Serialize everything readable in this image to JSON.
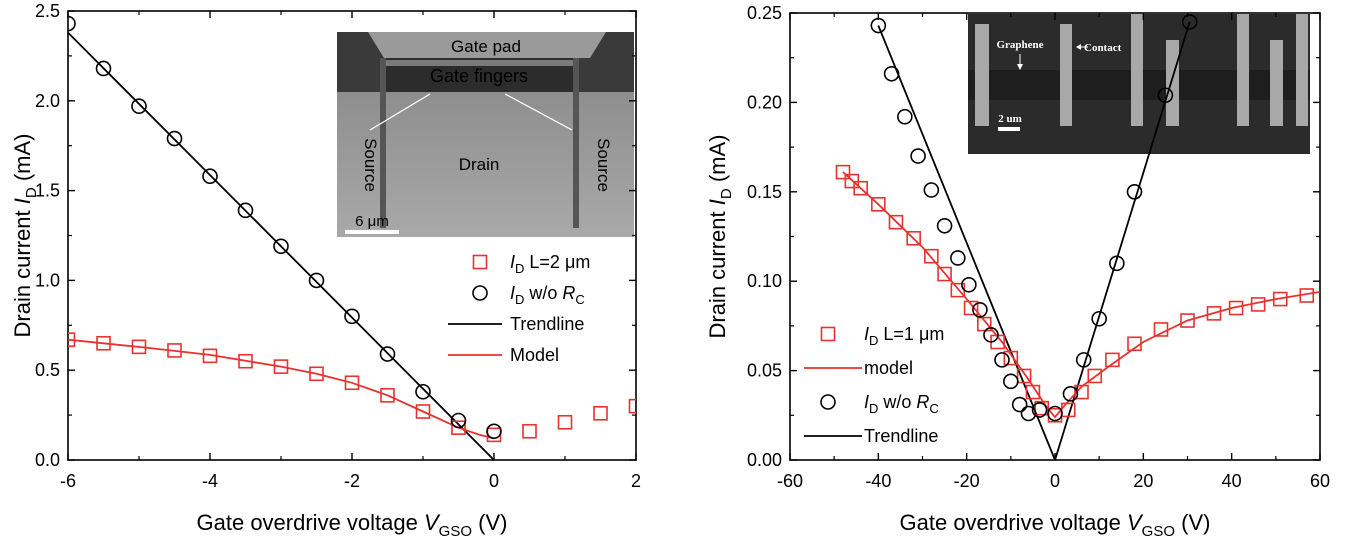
{
  "chart_data": [
    {
      "type": "scatter",
      "xlabel": {
        "main": "Gate overdrive voltage ",
        "var": "V",
        "sub": "GSO",
        "unit": " (V)"
      },
      "ylabel": {
        "pre": "Drain current ",
        "var": "I",
        "sub": "D",
        "unit": " (mA)"
      },
      "xlim": [
        -6,
        2
      ],
      "ylim": [
        0,
        2.5
      ],
      "xticks": [
        "-6",
        "-4",
        "-2",
        "0",
        "2"
      ],
      "yticks": [
        "0.0",
        "0.5",
        "1.0",
        "1.5",
        "2.0",
        "2.5"
      ],
      "series": [
        {
          "name": "L=2 μm",
          "marker": "square",
          "color": "#e8322f",
          "x": [
            -6,
            -5.5,
            -5,
            -4.5,
            -4,
            -3.5,
            -3,
            -2.5,
            -2,
            -1.5,
            -1,
            -0.5,
            0,
            0.5,
            1,
            1.5,
            2
          ],
          "y": [
            0.67,
            0.65,
            0.63,
            0.61,
            0.58,
            0.55,
            0.52,
            0.48,
            0.43,
            0.36,
            0.27,
            0.18,
            0.14,
            0.16,
            0.21,
            0.26,
            0.3
          ]
        },
        {
          "name": "w/o R_C",
          "marker": "circle",
          "color": "#000000",
          "x": [
            -6,
            -5.5,
            -5,
            -4.5,
            -4,
            -3.5,
            -3,
            -2.5,
            -2,
            -1.5,
            -1,
            -0.5,
            0
          ],
          "y": [
            2.43,
            2.18,
            1.97,
            1.79,
            1.58,
            1.39,
            1.19,
            1.0,
            0.8,
            0.59,
            0.38,
            0.22,
            0.16
          ]
        },
        {
          "name": "Trendline",
          "marker": "line",
          "color": "#000000",
          "x": [
            -6,
            0
          ],
          "y": [
            2.38,
            0.0
          ]
        },
        {
          "name": "Model",
          "marker": "line",
          "color": "#e8322f",
          "x": [
            -6,
            -5,
            -4,
            -3,
            -2.5,
            -2,
            -1.5,
            -1,
            -0.5,
            -0.2,
            0
          ],
          "y": [
            0.67,
            0.63,
            0.585,
            0.52,
            0.48,
            0.43,
            0.36,
            0.27,
            0.18,
            0.14,
            0.12
          ]
        }
      ],
      "legend": {
        "placement": "right",
        "items": [
          {
            "kind": "square",
            "pre": "I",
            "sub": "D",
            "text": " L=2 μm"
          },
          {
            "kind": "circle",
            "pre": "I",
            "sub": "D",
            "text": " w/o ",
            "var2": "R",
            "sub2": "C"
          },
          {
            "kind": "black-line",
            "text": "Trendline"
          },
          {
            "kind": "red-line",
            "text": "Model"
          }
        ]
      },
      "inset": {
        "labels": [
          "Gate pad",
          "Gate fingers",
          "Source",
          "Drain",
          "Source",
          "6 μm"
        ]
      }
    },
    {
      "type": "scatter",
      "xlabel": {
        "main": "Gate overdrive voltage ",
        "var": "V",
        "sub": "GSO",
        "unit": " (V)"
      },
      "ylabel": {
        "pre": "Drain current ",
        "var": "I",
        "sub": "D",
        "unit": " (mA)"
      },
      "xlim": [
        -60,
        60
      ],
      "ylim": [
        0,
        0.25
      ],
      "xticks": [
        "-60",
        "-40",
        "-20",
        "0",
        "20",
        "40",
        "60"
      ],
      "yticks": [
        "0.00",
        "0.05",
        "0.10",
        "0.15",
        "0.20",
        "0.25"
      ],
      "series": [
        {
          "name": "L=1 μm",
          "marker": "square",
          "color": "#e8322f",
          "x": [
            -48,
            -46,
            -44,
            -40,
            -36,
            -32,
            -28,
            -25,
            -22,
            -19,
            -16,
            -13,
            -10,
            -7,
            -5,
            -3,
            0,
            3,
            6,
            9,
            13,
            18,
            24,
            30,
            36,
            41,
            46,
            51,
            57
          ],
          "y": [
            0.161,
            0.156,
            0.152,
            0.143,
            0.133,
            0.124,
            0.114,
            0.104,
            0.095,
            0.085,
            0.076,
            0.066,
            0.057,
            0.047,
            0.038,
            0.029,
            0.025,
            0.028,
            0.038,
            0.047,
            0.056,
            0.065,
            0.073,
            0.078,
            0.082,
            0.085,
            0.087,
            0.09,
            0.092
          ]
        },
        {
          "name": "w/o R_C",
          "marker": "circle",
          "color": "#000000",
          "x": [
            -40,
            -37,
            -34,
            -31,
            -28,
            -25,
            -22,
            -19.5,
            -17,
            -14.5,
            -12,
            -10,
            -8,
            -6,
            -3.5,
            0,
            3.5,
            6.5,
            10,
            14,
            18,
            25,
            30.5
          ],
          "y": [
            0.243,
            0.216,
            0.192,
            0.17,
            0.151,
            0.131,
            0.113,
            0.098,
            0.084,
            0.07,
            0.056,
            0.044,
            0.031,
            0.026,
            0.028,
            0.026,
            0.037,
            0.056,
            0.079,
            0.11,
            0.15,
            0.204,
            0.245
          ]
        },
        {
          "name": "Trendline",
          "marker": "line",
          "color": "#000000",
          "x": [
            -40,
            0,
            30.5
          ],
          "y": [
            0.243,
            0.0,
            0.245
          ]
        },
        {
          "name": "model",
          "marker": "line",
          "color": "#e8322f",
          "x": [
            -48,
            -40,
            -30,
            -20,
            -12,
            -6,
            -2,
            0,
            2,
            6,
            12,
            20,
            30,
            40,
            50,
            60
          ],
          "y": [
            0.161,
            0.143,
            0.119,
            0.09,
            0.066,
            0.045,
            0.03,
            0.024,
            0.03,
            0.041,
            0.052,
            0.066,
            0.078,
            0.085,
            0.09,
            0.094
          ]
        }
      ],
      "legend": {
        "placement": "left",
        "items": [
          {
            "kind": "square",
            "pre": "I",
            "sub": "D",
            "text": " L=1 μm"
          },
          {
            "kind": "red-line",
            "text": "model"
          },
          {
            "kind": "circle",
            "pre": "I",
            "sub": "D",
            "text": " w/o ",
            "var2": "R",
            "sub2": "C"
          },
          {
            "kind": "black-line",
            "text": "Trendline"
          }
        ]
      },
      "inset": {
        "labels": [
          "Graphene",
          "Contact",
          "2 um"
        ]
      }
    }
  ]
}
